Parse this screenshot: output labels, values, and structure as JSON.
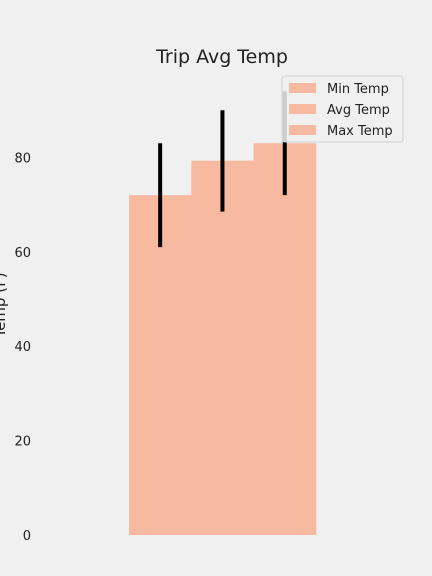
{
  "chart_data": {
    "type": "bar",
    "title": "Trip Avg Temp",
    "ylabel": "Temp (F)",
    "xlabel": "",
    "ylim": [
      0,
      100
    ],
    "yticks": [
      0,
      20,
      40,
      60,
      80
    ],
    "grid": false,
    "legend_position": "top-right",
    "bar_color": "#f7b9a0",
    "error_color": "#000000",
    "series": [
      {
        "name": "Min Temp",
        "value": 72,
        "error_low": 61,
        "error_high": 83
      },
      {
        "name": "Avg Temp",
        "value": 79.3,
        "error_low": 68.5,
        "error_high": 90
      },
      {
        "name": "Max Temp",
        "value": 83,
        "error_low": 72,
        "error_high": 94
      }
    ]
  }
}
